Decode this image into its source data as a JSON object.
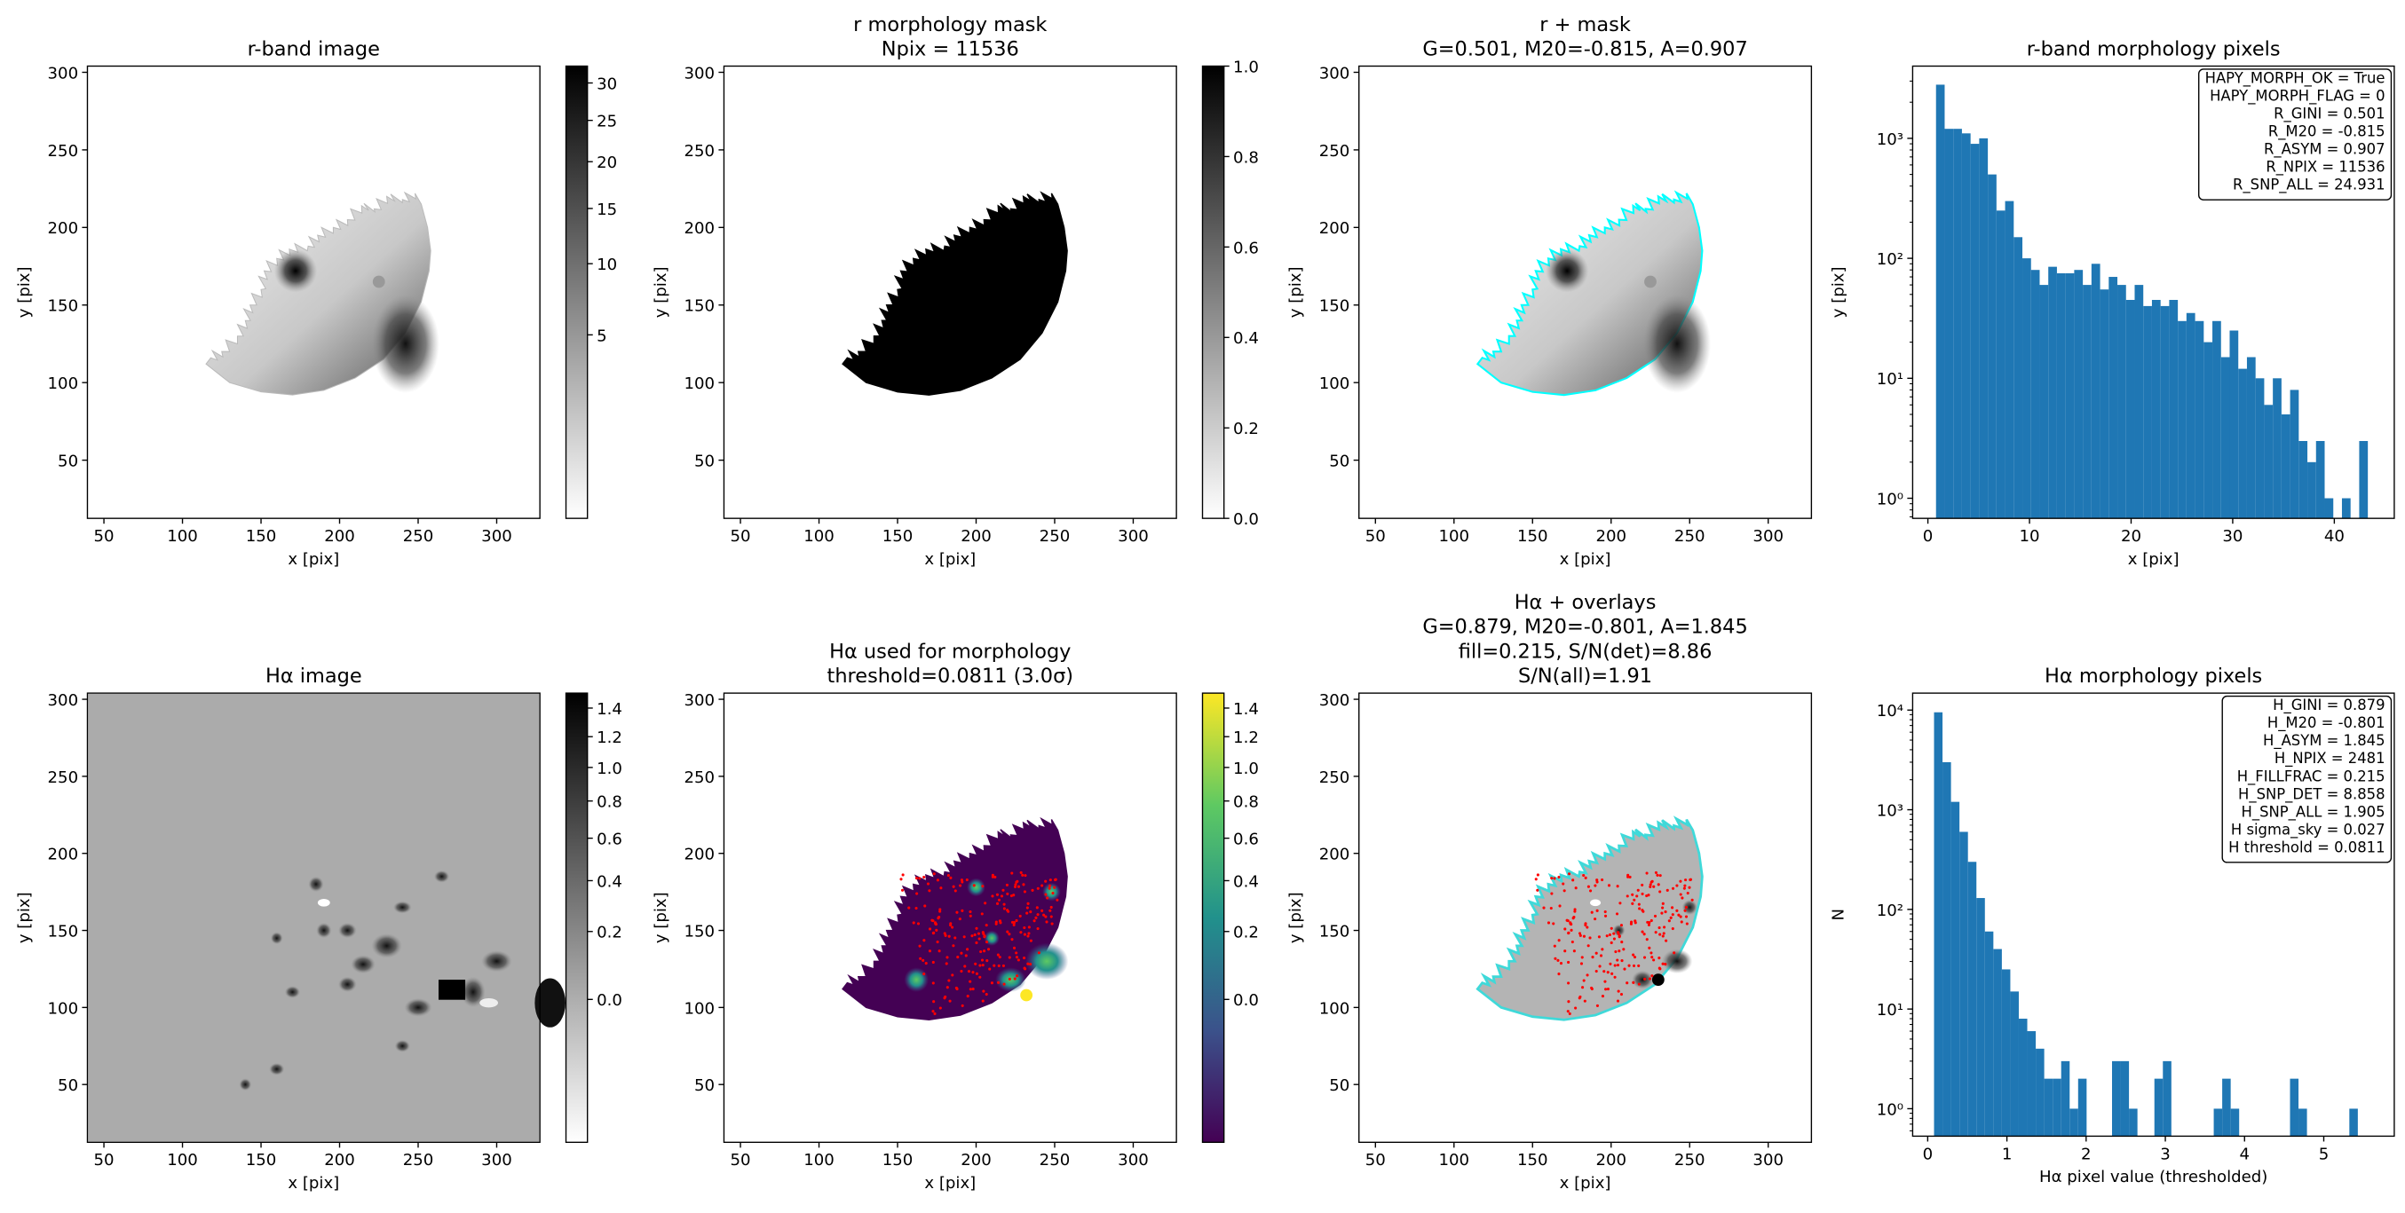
{
  "chart_data": [
    {
      "type": "image",
      "title": [
        "r-band image"
      ],
      "xlabel": "x [pix]",
      "ylabel": "y [pix]",
      "xlim": [
        39.5,
        327.5
      ],
      "ylim": [
        12.5,
        304
      ],
      "xticks": [
        50,
        100,
        150,
        200,
        250,
        300
      ],
      "yticks": [
        50,
        100,
        150,
        200,
        250,
        300
      ],
      "colorbar": {
        "cmap": "gray_r",
        "stretch": "sqrt",
        "zlim": [
          -0.4,
          32.4
        ],
        "ticks": [
          5,
          10,
          15,
          20,
          25,
          30
        ]
      }
    },
    {
      "type": "image",
      "title": [
        "r morphology mask",
        "Npix = 11536"
      ],
      "xlabel": "x [pix]",
      "ylabel": "y [pix]",
      "xlim": [
        39.5,
        327.5
      ],
      "ylim": [
        12.5,
        304
      ],
      "xticks": [
        50,
        100,
        150,
        200,
        250,
        300
      ],
      "yticks": [
        50,
        100,
        150,
        200,
        250,
        300
      ],
      "colorbar": {
        "cmap": "gray_r",
        "stretch": "linear",
        "zlim": [
          0,
          1
        ],
        "ticks": [
          {
            "value": 0,
            "label": "0.0"
          },
          {
            "value": 0.2,
            "label": "0.2"
          },
          {
            "value": 0.4,
            "label": "0.4"
          },
          {
            "value": 0.6,
            "label": "0.6"
          },
          {
            "value": 0.8,
            "label": "0.8"
          },
          {
            "value": 1,
            "label": "1.0"
          }
        ]
      }
    },
    {
      "type": "image",
      "title": [
        "r + mask",
        "G=0.501, M20=-0.815, A=0.907"
      ],
      "xlabel": "x [pix]",
      "ylabel": "y [pix]",
      "xlim": [
        39.5,
        327.5
      ],
      "ylim": [
        12.5,
        304
      ],
      "xticks": [
        50,
        100,
        150,
        200,
        250,
        300
      ],
      "yticks": [
        50,
        100,
        150,
        200,
        250,
        300
      ]
    },
    {
      "type": "histogram",
      "title": [
        "r-band morphology pixels"
      ],
      "xlabel": "x [pix]",
      "ylabel": "y [pix]",
      "log_y": true,
      "color": "#1f77b4",
      "bins": [
        0.8,
        1.65,
        2.5,
        3.35,
        4.2,
        5.05,
        5.9,
        6.75,
        7.6,
        8.45,
        9.3,
        10.15,
        11,
        11.85,
        12.7,
        13.55,
        14.4,
        15.25,
        16.1,
        16.95,
        17.8,
        18.65,
        19.5,
        20.35,
        21.2,
        22.05,
        22.9,
        23.75,
        24.6,
        25.45,
        26.3,
        27.15,
        28,
        28.85,
        29.7,
        30.55,
        31.4,
        32.25,
        33.1,
        33.95,
        34.8,
        35.65,
        36.5,
        37.35,
        38.2,
        39.05,
        39.9,
        40.75,
        41.6,
        42.45,
        43.3
      ],
      "values": [
        2800,
        1200,
        1200,
        1100,
        900,
        1000,
        500,
        250,
        300,
        150,
        100,
        80,
        60,
        85,
        75,
        75,
        80,
        60,
        90,
        55,
        70,
        60,
        45,
        60,
        40,
        45,
        40,
        45,
        30,
        35,
        30,
        20,
        30,
        15,
        25,
        12,
        15,
        10,
        6,
        10,
        5,
        8,
        3,
        2,
        3,
        1,
        0,
        1,
        0,
        3
      ],
      "xlim": [
        -1.5,
        45.9
      ],
      "ylim": [
        0.68,
        4000
      ],
      "xticks": [
        0,
        10,
        20,
        30,
        40
      ],
      "yticks": [
        {
          "value": 1,
          "label": "10⁰"
        },
        {
          "value": 10,
          "label": "10¹"
        },
        {
          "value": 100,
          "label": "10²"
        },
        {
          "value": 1000,
          "label": "10³"
        }
      ],
      "info": [
        "HAPY_MORPH_OK = True",
        "HAPY_MORPH_FLAG = 0",
        "R_GINI = 0.501",
        "R_M20 = -0.815",
        "R_ASYM = 0.907",
        "R_NPIX = 11536",
        "R_SNP_ALL = 24.931"
      ]
    },
    {
      "type": "image",
      "title": [
        "Hα image"
      ],
      "xlabel": "x [pix]",
      "ylabel": "y [pix]",
      "xlim": [
        39.5,
        327.5
      ],
      "ylim": [
        12.5,
        304
      ],
      "xticks": [
        50,
        100,
        150,
        200,
        250,
        300
      ],
      "yticks": [
        50,
        100,
        150,
        200,
        250,
        300
      ],
      "colorbar": {
        "cmap": "gray_r",
        "stretch": "sqrt",
        "zlim": [
          -0.17,
          1.51
        ],
        "ticks": [
          {
            "value": 0,
            "label": "0.0"
          },
          {
            "value": 0.2,
            "label": "0.2"
          },
          {
            "value": 0.4,
            "label": "0.4"
          },
          {
            "value": 0.6,
            "label": "0.6"
          },
          {
            "value": 0.8,
            "label": "0.8"
          },
          {
            "value": 1,
            "label": "1.0"
          },
          {
            "value": 1.2,
            "label": "1.2"
          },
          {
            "value": 1.4,
            "label": "1.4"
          }
        ]
      }
    },
    {
      "type": "image",
      "title": [
        "Hα used for morphology",
        "threshold=0.0811 (3.0σ)"
      ],
      "xlabel": "x [pix]",
      "ylabel": "y [pix]",
      "xlim": [
        39.5,
        327.5
      ],
      "ylim": [
        12.5,
        304
      ],
      "xticks": [
        50,
        100,
        150,
        200,
        250,
        300
      ],
      "yticks": [
        50,
        100,
        150,
        200,
        250,
        300
      ],
      "colorbar": {
        "cmap": "viridis",
        "stretch": "sqrt",
        "zlim": [
          -0.17,
          1.51
        ],
        "ticks": [
          {
            "value": 0,
            "label": "0.0"
          },
          {
            "value": 0.2,
            "label": "0.2"
          },
          {
            "value": 0.4,
            "label": "0.4"
          },
          {
            "value": 0.6,
            "label": "0.6"
          },
          {
            "value": 0.8,
            "label": "0.8"
          },
          {
            "value": 1,
            "label": "1.0"
          },
          {
            "value": 1.2,
            "label": "1.2"
          },
          {
            "value": 1.4,
            "label": "1.4"
          }
        ]
      }
    },
    {
      "type": "image",
      "title": [
        "Hα + overlays",
        "G=0.879, M20=-0.801, A=1.845",
        "fill=0.215, S/N(det)=8.86",
        "S/N(all)=1.91"
      ],
      "xlabel": "x [pix]",
      "ylabel": "y [pix]",
      "xlim": [
        39.5,
        327.5
      ],
      "ylim": [
        12.5,
        304
      ],
      "xticks": [
        50,
        100,
        150,
        200,
        250,
        300
      ],
      "yticks": [
        50,
        100,
        150,
        200,
        250,
        300
      ]
    },
    {
      "type": "histogram",
      "title": [
        "Hα morphology pixels"
      ],
      "xlabel": "Hα pixel value (thresholded)",
      "ylabel": "N",
      "log_y": true,
      "color": "#1f77b4",
      "bins": [
        0.08,
        0.187,
        0.294,
        0.401,
        0.508,
        0.615,
        0.722,
        0.829,
        0.936,
        1.043,
        1.15,
        1.257,
        1.364,
        1.471,
        1.578,
        1.685,
        1.792,
        1.899,
        2.006,
        2.113,
        2.22,
        2.327,
        2.434,
        2.541,
        2.648,
        2.755,
        2.862,
        2.969,
        3.076,
        3.183,
        3.29,
        3.397,
        3.504,
        3.611,
        3.718,
        3.825,
        3.932,
        4.039,
        4.146,
        4.253,
        4.36,
        4.467,
        4.574,
        4.681,
        4.788,
        4.895,
        5.002,
        5.109,
        5.216,
        5.323,
        5.43
      ],
      "values": [
        9500,
        3000,
        1200,
        600,
        300,
        130,
        60,
        40,
        25,
        15,
        8,
        6,
        4,
        2,
        2,
        3,
        1,
        2,
        0,
        0,
        0,
        3,
        3,
        1,
        0,
        0,
        2,
        3,
        0,
        0,
        0,
        0,
        0,
        1,
        2,
        1,
        0,
        0,
        0,
        0,
        0,
        0,
        2,
        1,
        0,
        0,
        0,
        0,
        0,
        1
      ],
      "xlim": [
        -0.19,
        5.89
      ],
      "ylim": [
        0.53,
        14800
      ],
      "xticks": [
        0,
        1,
        2,
        3,
        4,
        5
      ],
      "yticks": [
        {
          "value": 1,
          "label": "10⁰"
        },
        {
          "value": 10,
          "label": "10¹"
        },
        {
          "value": 100,
          "label": "10²"
        },
        {
          "value": 1000,
          "label": "10³"
        },
        {
          "value": 10000,
          "label": "10⁴"
        }
      ],
      "info": [
        "H_GINI = 0.879",
        "H_M20 = -0.801",
        "H_ASYM = 1.845",
        "H_NPIX = 2481",
        "H_FILLFRAC = 0.215",
        "H_SNP_DET = 8.858",
        "H_SNP_ALL = 1.905",
        "H sigma_sky = 0.027",
        "H threshold = 0.0811"
      ]
    }
  ]
}
